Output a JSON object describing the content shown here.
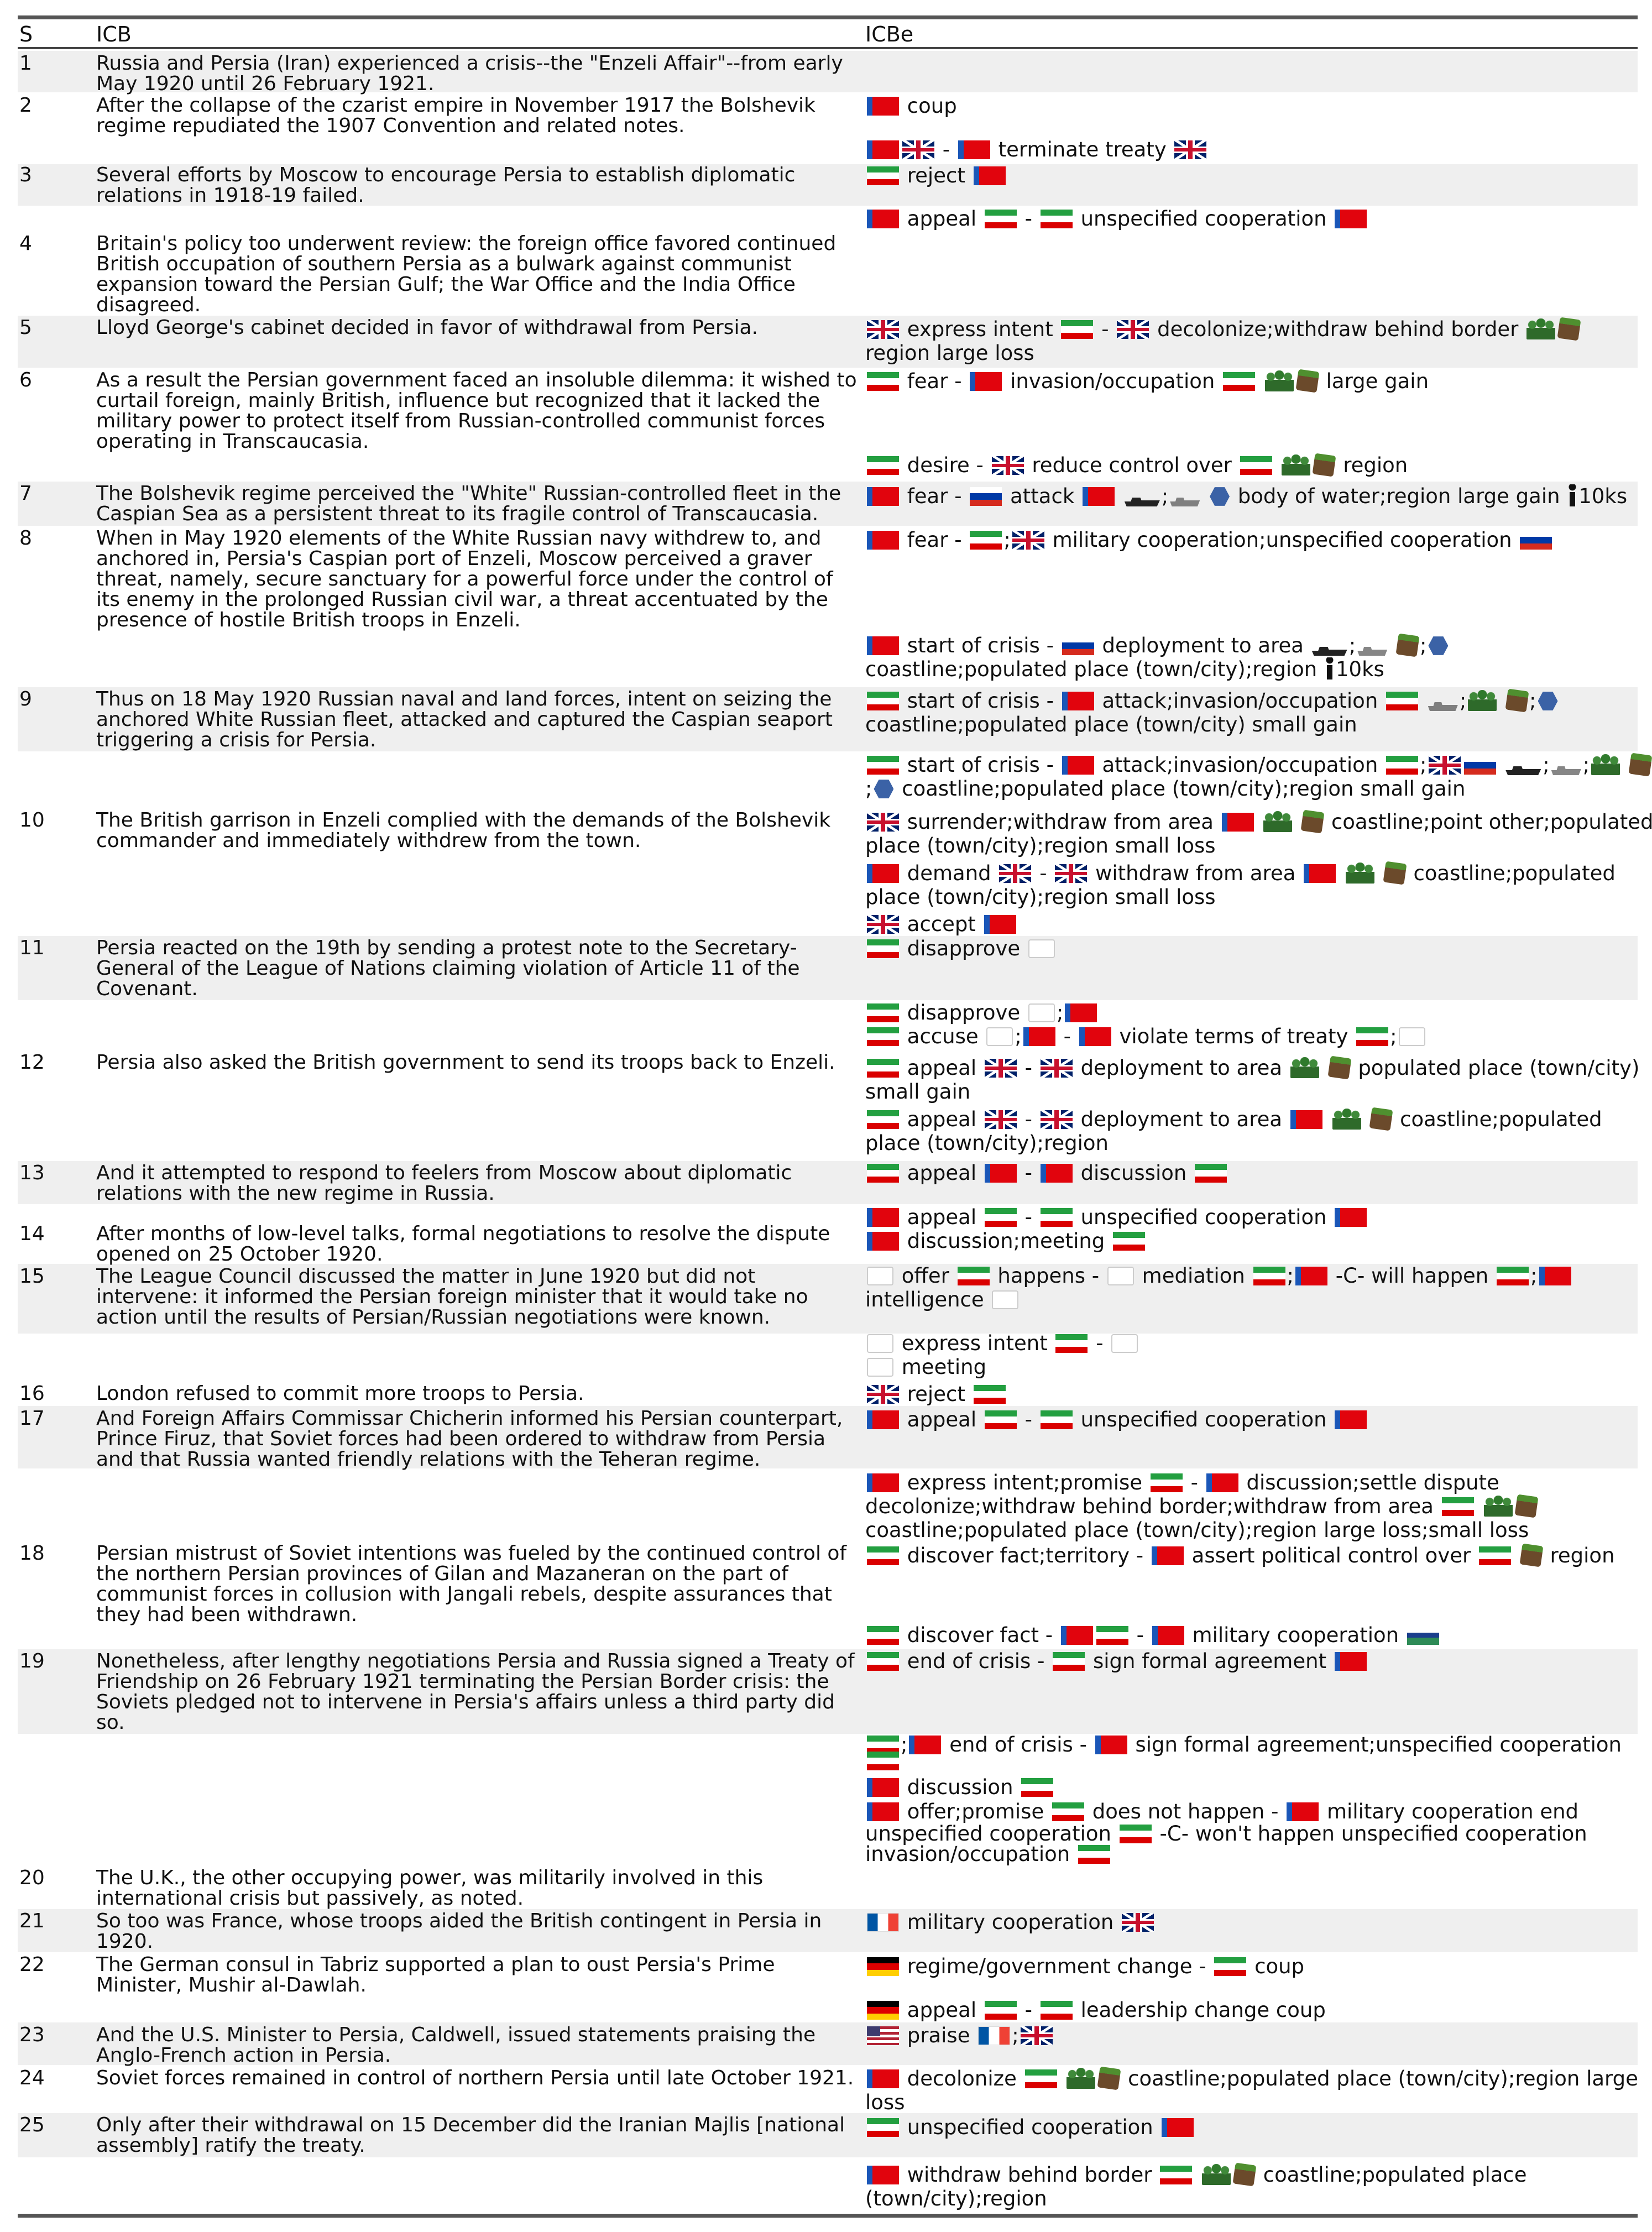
{
  "header": {
    "col_s": "S",
    "col_icb": "ICB",
    "col_icbe": "ICBe"
  },
  "rows": [
    {
      "s": "1",
      "text": "Russia and Persia (Iran) experienced a crisis--the \"Enzeli Affair\"--from early May 1920 until 26 February 1921."
    },
    {
      "s": "2",
      "text": "After the collapse of the czarist empire in November 1917 the Bolshevik regime repudiated the 1907 Convention and related notes."
    },
    {
      "s": "3",
      "text": "Several efforts by Moscow to encourage Persia to establish diplomatic relations in 1918-19 failed."
    },
    {
      "s": "4",
      "text": "Britain's policy too underwent review: the foreign office favored continued British occupation of southern Persia as a bulwark against communist expansion toward the Persian Gulf; the War Office and the India Office disagreed."
    },
    {
      "s": "5",
      "text": "Lloyd George's cabinet decided in favor of withdrawal from Persia."
    },
    {
      "s": "6",
      "text": "As a result the Persian government faced an insoluble dilemma: it wished to curtail foreign, mainly British, influence but recognized that it lacked the military power to protect itself from Russian-controlled communist forces operating in Transcaucasia."
    },
    {
      "s": "7",
      "text": "The Bolshevik regime perceived the \"White\" Russian-controlled fleet in the Caspian Sea as a persistent threat to its fragile control of Transcaucasia."
    },
    {
      "s": "8",
      "text": "When in May 1920 elements of the White Russian navy withdrew to, and anchored in, Persia's Caspian port of Enzeli, Moscow perceived a graver threat, namely, secure sanctuary for a powerful force under the control of its enemy in the prolonged Russian civil war, a threat accentuated by the presence of hostile British troops in Enzeli."
    },
    {
      "s": "9",
      "text": "Thus on 18 May 1920 Russian naval and land forces, intent on seizing the anchored White Russian fleet, attacked and captured the Caspian seaport triggering a crisis for Persia."
    },
    {
      "s": "10",
      "text": "The British garrison in Enzeli complied with the demands of the Bolshevik commander and immediately withdrew from the town."
    },
    {
      "s": "11",
      "text": "Persia reacted on the 19th by sending a protest note to the Secretary-General of the League of Nations claiming violation of Article 11 of the Covenant."
    },
    {
      "s": "12",
      "text": "Persia also asked the British government to send its troops back to Enzeli."
    },
    {
      "s": "13",
      "text": "And it attempted to respond to feelers from Moscow about diplomatic relations with the new regime in Russia."
    },
    {
      "s": "14",
      "text": "After months of low-level talks, formal negotiations to resolve the dispute opened on 25 October 1920."
    },
    {
      "s": "15",
      "text": "The League Council discussed the matter in June 1920 but did not intervene: it informed the Persian foreign minister that it would take no action until the results of Persian/Russian negotiations were known."
    },
    {
      "s": "16",
      "text": "London refused to commit more troops to Persia."
    },
    {
      "s": "17",
      "text": "And Foreign Affairs Commissar Chicherin informed his Persian counterpart, Prince Firuz, that Soviet forces had been ordered to withdraw from Persia and that Russia wanted friendly relations with the Teheran regime."
    },
    {
      "s": "18",
      "text": "Persian mistrust of Soviet intentions was fueled by the continued control of the northern Persian provinces of Gilan and Mazaneran on the part of communist forces in collusion with Jangali rebels, despite assurances that they had been withdrawn."
    },
    {
      "s": "19",
      "text": "Nonetheless, after lengthy negotiations Persia and Russia signed a Treaty of Friendship on 26 February 1921 terminating the Persian Border crisis: the Soviets pledged not to intervene in Persia's affairs unless a third party did so."
    },
    {
      "s": "20",
      "text": "The U.K., the other occupying power, was militarily involved in this international crisis but passively, as noted."
    },
    {
      "s": "21",
      "text": "So too was France, whose troops aided the British contingent in Persia in 1920."
    },
    {
      "s": "22",
      "text": "The German consul in Tabriz supported a plan to oust Persia's Prime Minister, Mushir al-Dawlah."
    },
    {
      "s": "23",
      "text": "And the U.S. Minister to Persia, Caldwell, issued statements praising the Anglo-French action in Persia."
    },
    {
      "s": "24",
      "text": "Soviet forces remained in control of northern Persia until late October 1921."
    },
    {
      "s": "25",
      "text": "Only after their withdrawal on 15 December did the Iranian Majlis [national assembly] ratify the treaty."
    }
  ],
  "ev": {
    "coup": "coup",
    "terminate_treaty": "terminate treaty",
    "reject": "reject",
    "appeal": "appeal",
    "dash": "-",
    "unspecified_cooperation": "unspecified cooperation",
    "express_intent": "express intent",
    "decolonize_withdraw": "decolonize;withdraw behind border",
    "region_large_loss": "region large loss",
    "fear": "fear",
    "invasion_occupation": "invasion/occupation",
    "large_gain": "large gain",
    "desire": "desire",
    "reduce_control": "reduce control over",
    "region": "region",
    "attack": "attack",
    "semicolon": ";",
    "body_water": "body of water;region large gain",
    "ten_ks": "10ks",
    "mil_coop_unspec": "military cooperation;unspecified cooperation",
    "start_of_crisis": "start of crisis",
    "deployment_to_area": "deployment to area",
    "coast_town_region": "coastline;populated place (town/city);region",
    "attack_invasion": "attack;invasion/occupation",
    "coast_town_small_gain": "coastline;populated place (town/city) small gain",
    "coast_town_region_small_gain": "coastline;populated place (town/city);region small gain",
    "surrender_withdraw": "surrender;withdraw from area",
    "coast_point_a": "coastline;point other;populated",
    "place_region_small_loss": "place (town/city);region small loss",
    "demand": "demand",
    "withdraw_from_area": "withdraw from area",
    "coastline_populated": "coastline;populated",
    "accept": "accept",
    "disapprove": "disapprove",
    "accuse": "accuse",
    "violate_terms": "violate terms of treaty",
    "populated_place": "populated place (town/city)",
    "small_gain": "small gain",
    "place_region": "place (town/city);region",
    "discussion": "discussion",
    "discussion_meeting": "discussion;meeting",
    "offer": "offer",
    "happens": "happens",
    "mediation": "mediation",
    "c_will_happen": "-C- will happen",
    "intelligence": "intelligence",
    "meeting": "meeting",
    "express_intent_promise": "express intent;promise",
    "discussion_settle": "discussion;settle dispute",
    "decol_withdraw_area": "decolonize;withdraw behind border;withdraw from area",
    "coast_town_region_large_small": "coastline;populated place (town/city);region large loss;small loss",
    "discover_fact_territory": "discover fact;territory",
    "assert_political": "assert political control over",
    "discover_fact": "discover fact",
    "military_cooperation": "military cooperation",
    "end_of_crisis": "end of crisis",
    "sign_formal_agreement": "sign formal agreement",
    "sign_formal_unspec": "sign formal agreement;unspecified cooperation",
    "offer_promise": "offer;promise",
    "does_not_happen": "does not happen",
    "mil_coop_end": "military cooperation end",
    "c_wont_happen": "-C- won't happen unspecified cooperation",
    "invasion_occupation_end": "invasion/occupation",
    "regime_change": "regime/government change",
    "leadership_change_coup": "leadership change coup",
    "praise": "praise",
    "decolonize": "decolonize",
    "coast_town_region_large": "coastline;populated place (town/city);region large",
    "loss": "loss",
    "withdraw_behind_border": "withdraw behind border",
    "coastline_populated_place": "coastline;populated place",
    "town_region": "(town/city);region"
  },
  "icons": {
    "russia_flag": "soviet-flag-icon",
    "iran_flag": "iran-flag-icon",
    "uk_flag": "uk-flag-icon",
    "russian_empire_flag": "russian-flag-icon",
    "france_flag": "france-flag-icon",
    "germany_flag": "germany-flag-icon",
    "us_flag": "us-flag-icon",
    "league_flag": "league-of-nations-icon",
    "soldiers": "soldiers-icon",
    "territory": "territory-cube-icon",
    "water": "body-of-water-icon",
    "ship": "warship-icon",
    "person": "person-icon"
  },
  "colors": {
    "band": "#efefef",
    "rule": "#555555"
  }
}
